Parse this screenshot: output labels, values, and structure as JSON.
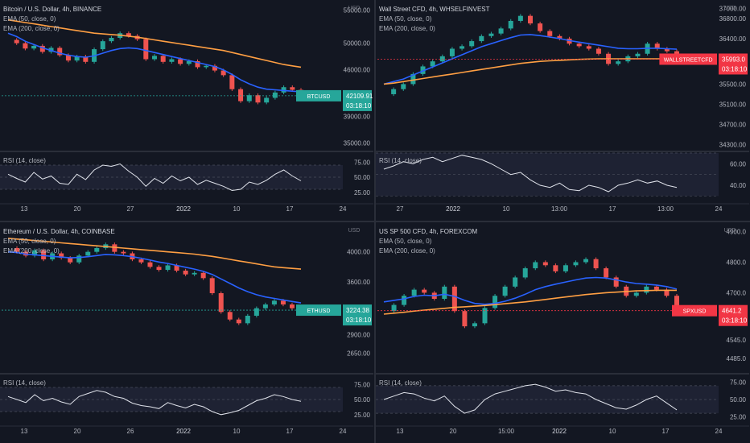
{
  "chart_data": [
    {
      "type": "line",
      "title": "Bitcoin / U.S. Dollar, 4h, BINANCE",
      "legend": [
        "EMA (50, close, 0)",
        "EMA (200, close, 0)"
      ],
      "price_axis": {
        "unit": "USD",
        "ticks": [
          55000,
          50000,
          46000,
          42109.91,
          39000,
          35000
        ],
        "tick_labels": [
          "55000.00",
          "50000.00",
          "46000.00",
          "42109.91",
          "39000.00",
          "35000.00"
        ]
      },
      "current_price": {
        "symbol": "BTCUSD",
        "value": "42109.91",
        "countdown": "03:18:10",
        "color": "#26a69a"
      },
      "rsi": {
        "label": "RSI (14, close)",
        "ticks": [
          "75.00",
          "50.00",
          "25.00"
        ],
        "ylim": [
          10,
          90
        ]
      },
      "x_ticks": [
        "13",
        "20",
        "27",
        "2022",
        "10",
        "17",
        "24"
      ],
      "ylim": [
        34000,
        56000
      ],
      "price_series": [
        50500,
        50000,
        49200,
        49600,
        48700,
        49300,
        48200,
        47400,
        48000,
        47200,
        49100,
        50300,
        50800,
        51500,
        51100,
        50600,
        47600,
        48100,
        47200,
        47600,
        46900,
        47300,
        46400,
        46600,
        45900,
        45200,
        43100,
        41300,
        42200,
        41100,
        41800,
        42600,
        43400,
        43000,
        42100
      ],
      "ema50": [
        51500,
        51000,
        50300,
        49800,
        49300,
        48900,
        48500,
        48200,
        48000,
        47900,
        48100,
        48500,
        48900,
        49200,
        49300,
        49200,
        48900,
        48600,
        48300,
        48000,
        47700,
        47400,
        47100,
        46800,
        46500,
        46000,
        45300,
        44500,
        43900,
        43400,
        43100,
        43000,
        42900,
        42800,
        42700
      ],
      "ema200": [
        53500,
        53300,
        53100,
        52900,
        52700,
        52500,
        52300,
        52100,
        51900,
        51700,
        51500,
        51400,
        51300,
        51200,
        51050,
        50900,
        50700,
        50500,
        50300,
        50100,
        49900,
        49700,
        49500,
        49300,
        49100,
        48900,
        48600,
        48300,
        48000,
        47700,
        47400,
        47100,
        46800,
        46600,
        46400
      ],
      "rsi_series": [
        55,
        48,
        42,
        58,
        47,
        52,
        40,
        38,
        55,
        46,
        62,
        70,
        68,
        72,
        60,
        50,
        35,
        48,
        40,
        52,
        44,
        50,
        38,
        45,
        40,
        35,
        28,
        30,
        42,
        38,
        45,
        55,
        62,
        52,
        44
      ]
    },
    {
      "type": "line",
      "title": "Wall Street CFD, 4h, WHSELFINVEST",
      "legend": [
        "EMA (50, close, 0)",
        "EMA (200, close, 0)"
      ],
      "price_axis": {
        "unit": "USD",
        "ticks": [
          37000,
          36800,
          36400,
          35993,
          35500,
          35100,
          34700,
          34300
        ],
        "tick_labels": [
          "37000.00",
          "36800.00",
          "36400.00",
          "35993.0",
          "35500.00",
          "35100.00",
          "34700.00",
          "34300.00"
        ]
      },
      "current_price": {
        "symbol": "WALLSTREETCFD",
        "value": "35993.0",
        "countdown": "03:18:10",
        "color": "#f23645"
      },
      "rsi": {
        "label": "RSI (14, close)",
        "ticks": [
          "60.00",
          "40.00"
        ],
        "ylim": [
          25,
          70
        ]
      },
      "x_ticks": [
        "27",
        "2022",
        "10",
        "13:00",
        "17",
        "13:00",
        "24"
      ],
      "ylim": [
        34200,
        37100
      ],
      "price_series": [
        35300,
        35400,
        35500,
        35700,
        35850,
        35950,
        36050,
        36200,
        36250,
        36350,
        36450,
        36500,
        36600,
        36750,
        36850,
        36700,
        36550,
        36450,
        36400,
        36300,
        36250,
        36200,
        36100,
        35900,
        35950,
        36050,
        36100,
        36300,
        36200,
        36150,
        35993
      ],
      "ema50": [
        35500,
        35550,
        35600,
        35680,
        35760,
        35840,
        35920,
        36000,
        36080,
        36160,
        36240,
        36300,
        36360,
        36420,
        36470,
        36480,
        36460,
        36430,
        36400,
        36360,
        36330,
        36300,
        36270,
        36240,
        36210,
        36200,
        36200,
        36210,
        36210,
        36200,
        36190
      ],
      "ema200": [
        35500,
        35520,
        35550,
        35580,
        35610,
        35640,
        35670,
        35700,
        35730,
        35760,
        35790,
        35820,
        35850,
        35880,
        35910,
        35930,
        35950,
        35960,
        35970,
        35980,
        35990,
        35995,
        36000,
        36000,
        36000,
        36000,
        36000,
        36000,
        36000,
        36000,
        36000
      ],
      "rsi_series": [
        55,
        58,
        62,
        60,
        64,
        66,
        62,
        65,
        68,
        66,
        64,
        60,
        55,
        50,
        52,
        45,
        40,
        38,
        42,
        36,
        35,
        40,
        38,
        34,
        40,
        42,
        45,
        42,
        44,
        40,
        38
      ]
    },
    {
      "type": "line",
      "title": "Ethereum / U.S. Dollar, 4h, COINBASE",
      "legend": [
        "EMA (50, close, 0)",
        "EMA (200, close, 0)"
      ],
      "price_axis": {
        "unit": "USD",
        "ticks": [
          4000,
          3600,
          3224.38,
          2900,
          2650
        ],
        "tick_labels": [
          "4000.00",
          "3600.00",
          "3224.38",
          "2900.00",
          "2650.00"
        ]
      },
      "current_price": {
        "symbol": "ETHUSD",
        "value": "3224.38",
        "countdown": "03:18:10",
        "color": "#26a69a"
      },
      "rsi": {
        "label": "RSI (14, close)",
        "ticks": [
          "75.00",
          "50.00",
          "25.00"
        ],
        "ylim": [
          10,
          90
        ]
      },
      "x_ticks": [
        "13",
        "20",
        "26",
        "2022",
        "10",
        "17",
        "24"
      ],
      "ylim": [
        2400,
        4350
      ],
      "price_series": [
        4050,
        4000,
        3950,
        4020,
        3900,
        3980,
        3920,
        3860,
        3950,
        4000,
        4050,
        4100,
        4000,
        3980,
        3900,
        3860,
        3800,
        3760,
        3820,
        3750,
        3700,
        3720,
        3650,
        3450,
        3200,
        3100,
        3050,
        3150,
        3250,
        3300,
        3350,
        3300,
        3250,
        3224
      ],
      "ema50": [
        4000,
        3990,
        3970,
        3960,
        3950,
        3940,
        3930,
        3920,
        3925,
        3935,
        3950,
        3965,
        3960,
        3950,
        3935,
        3915,
        3890,
        3865,
        3845,
        3820,
        3795,
        3770,
        3740,
        3700,
        3640,
        3580,
        3520,
        3470,
        3430,
        3400,
        3380,
        3360,
        3340,
        3320
      ],
      "ema200": [
        4180,
        4170,
        4160,
        4150,
        4140,
        4130,
        4120,
        4110,
        4100,
        4090,
        4080,
        4070,
        4060,
        4050,
        4040,
        4030,
        4020,
        4010,
        4000,
        3990,
        3980,
        3970,
        3955,
        3940,
        3920,
        3900,
        3880,
        3860,
        3840,
        3820,
        3800,
        3790,
        3780,
        3770
      ],
      "rsi_series": [
        55,
        50,
        45,
        58,
        48,
        52,
        46,
        42,
        55,
        60,
        65,
        62,
        55,
        52,
        44,
        40,
        38,
        35,
        45,
        40,
        36,
        42,
        38,
        30,
        25,
        28,
        32,
        40,
        48,
        52,
        58,
        55,
        50,
        47
      ]
    },
    {
      "type": "line",
      "title": "US SP 500 CFD, 4h, FOREXCOM",
      "legend": [
        "EMA (50, close, 0)",
        "EMA (200, close, 0)"
      ],
      "price_axis": {
        "unit": "USD",
        "ticks": [
          4900,
          4800,
          4700,
          4641.2,
          4545,
          4485
        ],
        "tick_labels": [
          "4900.0",
          "4800.0",
          "4700.0",
          "4641.2",
          "4545.0",
          "4485.0"
        ]
      },
      "current_price": {
        "symbol": "SPXUSD",
        "value": "4641.2",
        "countdown": "03:18:10",
        "color": "#f23645"
      },
      "rsi": {
        "label": "RSI (14, close)",
        "ticks": [
          "75.00",
          "50.00",
          "25.00"
        ],
        "ylim": [
          15,
          85
        ]
      },
      "x_ticks": [
        "13",
        "20",
        "15:00",
        "2022",
        "10",
        "17",
        "24"
      ],
      "ylim": [
        4440,
        4920
      ],
      "price_series": [
        4640,
        4660,
        4690,
        4710,
        4700,
        4680,
        4720,
        4640,
        4590,
        4600,
        4650,
        4690,
        4720,
        4750,
        4780,
        4800,
        4790,
        4770,
        4790,
        4800,
        4810,
        4780,
        4750,
        4720,
        4690,
        4700,
        4720,
        4710,
        4690,
        4641
      ],
      "ema50": [
        4670,
        4675,
        4680,
        4688,
        4692,
        4690,
        4695,
        4688,
        4675,
        4665,
        4662,
        4665,
        4672,
        4682,
        4695,
        4710,
        4720,
        4728,
        4735,
        4742,
        4748,
        4750,
        4748,
        4742,
        4735,
        4730,
        4728,
        4725,
        4720,
        4712
      ],
      "ema200": [
        4630,
        4633,
        4636,
        4640,
        4643,
        4646,
        4649,
        4652,
        4654,
        4656,
        4658,
        4661,
        4664,
        4667,
        4670,
        4674,
        4678,
        4682,
        4686,
        4690,
        4694,
        4697,
        4700,
        4702,
        4704,
        4706,
        4707,
        4708,
        4708,
        4708
      ],
      "rsi_series": [
        50,
        55,
        60,
        58,
        52,
        48,
        55,
        40,
        30,
        35,
        50,
        58,
        62,
        66,
        70,
        72,
        68,
        62,
        64,
        60,
        58,
        50,
        44,
        38,
        36,
        42,
        50,
        55,
        45,
        35
      ]
    }
  ],
  "ui": {
    "watermark": "Bitcoin / U.S. Dollar"
  }
}
